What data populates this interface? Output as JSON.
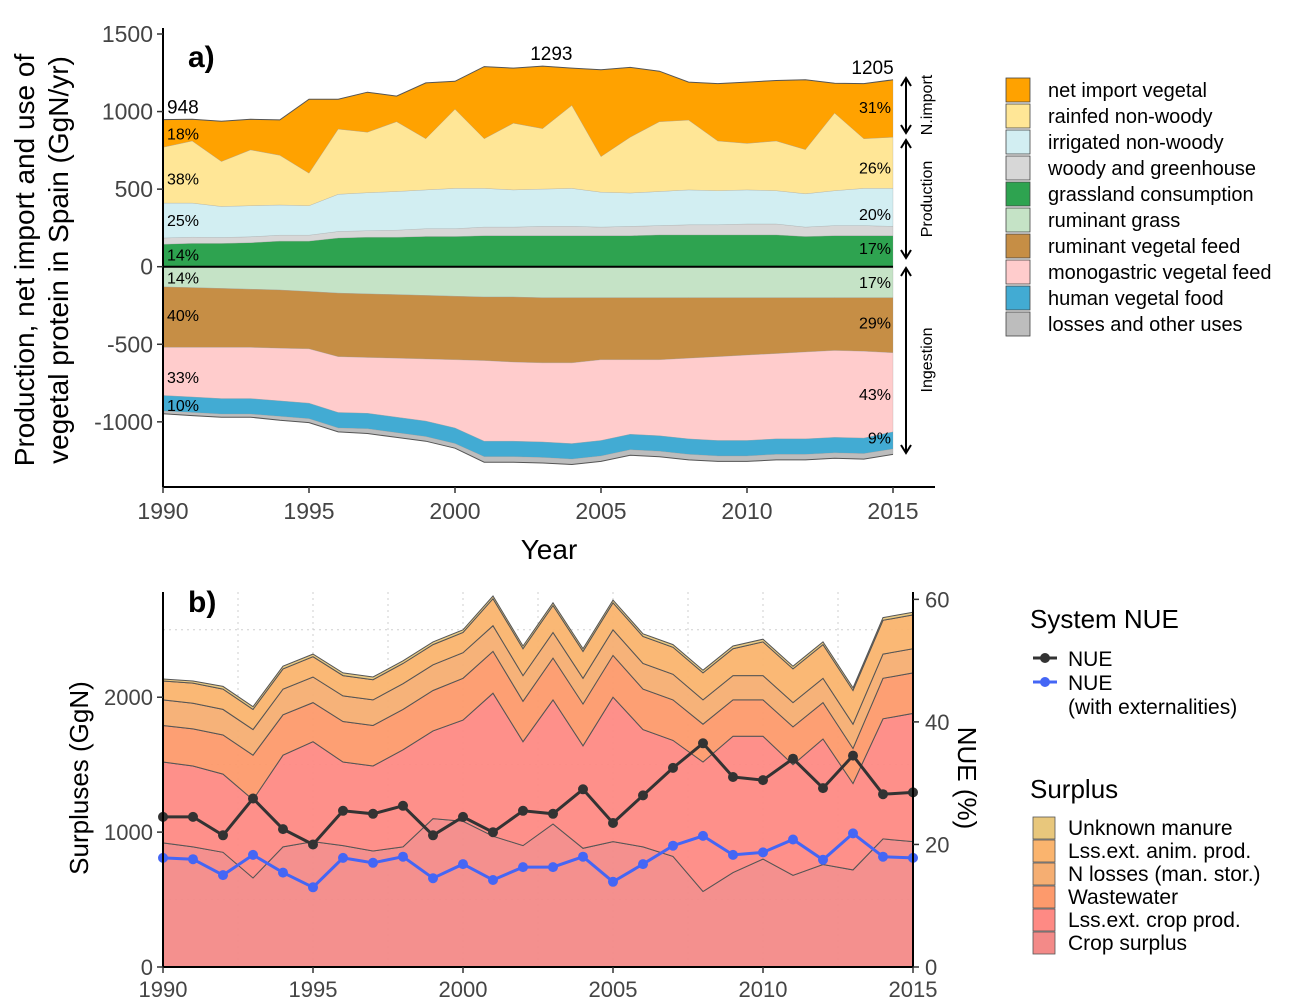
{
  "colors": {
    "net_import_vegetal": "#FFA200",
    "rainfed_non_woody": "#FFE696",
    "irrigated_non_woody": "#D2EEF2",
    "woody_and_greenhouse": "#D7D7D7",
    "grassland_consumption": "#2EA350",
    "ruminant_grass": "#C5E3C6",
    "ruminant_vegetal_feed": "#C68E45",
    "monogastric_vegetal_feed": "#FFCCCC",
    "human_vegetal_food": "#42ABD3",
    "losses_and_other_uses": "#BDBDBD",
    "unknown_manure": "#E8C77C",
    "lss_ext_anim_prod": "#FAB46E",
    "n_losses_man_stor": "#F5AE72",
    "wastewater": "#FD9A6C",
    "lss_ext_crop_prod": "#FE8A84",
    "crop_surplus": "#F38A88",
    "nue": "#333333",
    "nue_ext": "#4466F5"
  },
  "chart_data": [
    {
      "type": "area",
      "panel_label": "a)",
      "xlabel": "Year",
      "ylabel_line1": "Production, net import and use of",
      "ylabel_line2": "vegetal protein in Spain (GgN/yr)",
      "xlim": [
        1990,
        2015
      ],
      "ylim": [
        -1420,
        1500
      ],
      "y_ticks": [
        1500,
        1000,
        500,
        0,
        -500,
        -1000
      ],
      "y_tick_labels": [
        "1500",
        "1000",
        "500",
        "0",
        "-500",
        "-1000"
      ],
      "x_ticks": [
        1990,
        1995,
        2000,
        2005,
        2010,
        2015
      ],
      "x_tick_labels": [
        "1990",
        "1995",
        "2000",
        "2005",
        "2010",
        "2015"
      ],
      "x": [
        1990,
        1991,
        1992,
        1993,
        1994,
        1995,
        1996,
        1997,
        1998,
        1999,
        2000,
        2001,
        2002,
        2003,
        2004,
        2005,
        2006,
        2007,
        2008,
        2009,
        2010,
        2011,
        2012,
        2013,
        2014,
        2015
      ],
      "positive_series": [
        {
          "name": "grassland consumption",
          "color_key": "grassland_consumption",
          "values": [
            145,
            150,
            150,
            155,
            165,
            165,
            185,
            190,
            190,
            195,
            195,
            200,
            200,
            200,
            200,
            200,
            200,
            205,
            205,
            205,
            205,
            205,
            195,
            200,
            200,
            200
          ]
        },
        {
          "name": "woody and greenhouse",
          "color_key": "woody_and_greenhouse",
          "values": [
            40,
            40,
            38,
            38,
            38,
            38,
            42,
            42,
            45,
            50,
            50,
            55,
            55,
            60,
            60,
            55,
            60,
            60,
            65,
            65,
            70,
            70,
            60,
            65,
            65,
            60
          ]
        },
        {
          "name": "irrigated non-woody",
          "color_key": "irrigated_non_woody",
          "values": [
            225,
            220,
            200,
            200,
            195,
            190,
            240,
            245,
            250,
            250,
            260,
            250,
            240,
            240,
            245,
            225,
            215,
            220,
            225,
            220,
            220,
            215,
            215,
            225,
            240,
            245
          ]
        },
        {
          "name": "rainfed non-woody",
          "color_key": "rainfed_non_woody",
          "values": [
            360,
            400,
            290,
            360,
            320,
            210,
            420,
            390,
            450,
            330,
            510,
            320,
            430,
            390,
            535,
            230,
            360,
            450,
            450,
            320,
            300,
            320,
            285,
            500,
            320,
            330
          ]
        },
        {
          "name": "net import vegetal",
          "color_key": "net_import_vegetal",
          "values": [
            178,
            140,
            260,
            197,
            228,
            477,
            193,
            258,
            165,
            360,
            180,
            465,
            355,
            403,
            240,
            560,
            450,
            325,
            245,
            370,
            395,
            390,
            450,
            192,
            355,
            370
          ]
        }
      ],
      "negative_series": [
        {
          "name": "ruminant grass",
          "color_key": "ruminant_grass",
          "values": [
            -130,
            -135,
            -140,
            -145,
            -150,
            -160,
            -170,
            -175,
            -180,
            -185,
            -190,
            -195,
            -195,
            -200,
            -200,
            -200,
            -200,
            -200,
            -200,
            -200,
            -200,
            -200,
            -200,
            -200,
            -200,
            -200
          ]
        },
        {
          "name": "ruminant vegetal feed",
          "color_key": "ruminant_vegetal_feed",
          "values": [
            -390,
            -385,
            -380,
            -375,
            -375,
            -370,
            -410,
            -410,
            -410,
            -410,
            -410,
            -410,
            -420,
            -420,
            -420,
            -400,
            -400,
            -400,
            -390,
            -380,
            -370,
            -360,
            -350,
            -340,
            -345,
            -355
          ]
        },
        {
          "name": "monogastric vegetal feed",
          "color_key": "monogastric_vegetal_feed",
          "values": [
            -310,
            -320,
            -330,
            -330,
            -340,
            -350,
            -360,
            -360,
            -380,
            -400,
            -440,
            -520,
            -510,
            -510,
            -520,
            -520,
            -480,
            -490,
            -520,
            -540,
            -550,
            -550,
            -560,
            -560,
            -560,
            -510
          ]
        },
        {
          "name": "human vegetal food",
          "color_key": "human_vegetal_food",
          "values": [
            -100,
            -100,
            -100,
            -100,
            -100,
            -100,
            -100,
            -100,
            -100,
            -100,
            -100,
            -100,
            -100,
            -100,
            -100,
            -100,
            -100,
            -100,
            -100,
            -100,
            -100,
            -100,
            -100,
            -100,
            -100,
            -110
          ]
        },
        {
          "name": "losses and other uses",
          "color_key": "losses_and_other_uses",
          "values": [
            -18,
            -20,
            -20,
            -20,
            -25,
            -25,
            -25,
            -30,
            -30,
            -30,
            -30,
            -35,
            -35,
            -35,
            -35,
            -35,
            -35,
            -35,
            -35,
            -35,
            -35,
            -35,
            -35,
            -35,
            -35,
            -35
          ]
        }
      ],
      "totals": [
        {
          "x": 1990,
          "label": "948"
        },
        {
          "x": 2003.3,
          "label": "1293"
        },
        {
          "x": 2014.3,
          "label": "1205"
        }
      ],
      "pct_left": [
        "18%",
        "38%",
        "25%",
        "14%",
        "14%",
        "40%",
        "33%",
        "10%"
      ],
      "pct_right": [
        "31%",
        "26%",
        "20%",
        "17%",
        "17%",
        "29%",
        "43%",
        "9%"
      ],
      "side_labels": [
        "N.import",
        "Production",
        "Ingestion"
      ],
      "legend": [
        "net import vegetal",
        "rainfed non-woody",
        "irrigated non-woody",
        "woody and greenhouse",
        "grassland consumption",
        "ruminant grass",
        "ruminant vegetal feed",
        "monogastric vegetal feed",
        "human vegetal food",
        "losses and other uses"
      ]
    },
    {
      "type": "area",
      "panel_label": "b)",
      "ylabel": "Surpluses (GgN)",
      "y2label": "NUE (%)",
      "xlim": [
        1990,
        2015
      ],
      "ylim": [
        0,
        2780
      ],
      "y2lim": [
        0,
        61.2
      ],
      "y_ticks": [
        0,
        1000,
        2000
      ],
      "y_tick_labels": [
        "0",
        "1000",
        "2000"
      ],
      "y2_ticks": [
        0,
        20,
        40,
        60
      ],
      "y2_tick_labels": [
        "0",
        "20",
        "40",
        "60"
      ],
      "x_ticks": [
        1990,
        1995,
        2000,
        2005,
        2010,
        2015
      ],
      "x_tick_labels": [
        "1990",
        "1995",
        "2000",
        "2005",
        "2010",
        "2015"
      ],
      "x": [
        1990,
        1991,
        1992,
        1993,
        1994,
        1995,
        1996,
        1997,
        1998,
        1999,
        2000,
        2001,
        2002,
        2003,
        2004,
        2005,
        2006,
        2007,
        2008,
        2009,
        2010,
        2011,
        2012,
        2013,
        2014,
        2015
      ],
      "series": [
        {
          "name": "Crop surplus",
          "color_key": "crop_surplus",
          "values": [
            920,
            890,
            850,
            660,
            890,
            930,
            900,
            860,
            890,
            1100,
            1080,
            970,
            900,
            1060,
            880,
            930,
            890,
            820,
            560,
            700,
            800,
            680,
            760,
            720,
            950,
            930
          ]
        },
        {
          "name": "Lss.ext. crop prod.",
          "color_key": "lss_ext_crop_prod",
          "values": [
            600,
            600,
            580,
            580,
            680,
            740,
            620,
            630,
            720,
            650,
            750,
            1060,
            770,
            920,
            760,
            1070,
            870,
            860,
            960,
            1010,
            910,
            820,
            930,
            640,
            890,
            950
          ]
        },
        {
          "name": "Wastewater",
          "color_key": "wastewater",
          "values": [
            270,
            275,
            290,
            330,
            300,
            290,
            300,
            300,
            300,
            300,
            310,
            310,
            300,
            310,
            310,
            310,
            300,
            300,
            280,
            270,
            270,
            280,
            270,
            260,
            300,
            300
          ]
        },
        {
          "name": "N losses (man. stor.)",
          "color_key": "n_losses_man_stor",
          "values": [
            190,
            190,
            190,
            190,
            190,
            190,
            190,
            190,
            190,
            190,
            190,
            190,
            190,
            190,
            190,
            190,
            190,
            190,
            180,
            180,
            180,
            180,
            180,
            180,
            180,
            180
          ]
        },
        {
          "name": "Lss.ext. anim. prod.",
          "color_key": "lss_ext_anim_prod",
          "values": [
            140,
            150,
            150,
            150,
            150,
            150,
            150,
            150,
            150,
            150,
            150,
            200,
            200,
            200,
            200,
            200,
            200,
            200,
            200,
            200,
            250,
            250,
            250,
            250,
            250,
            250
          ]
        },
        {
          "name": "Unknown manure",
          "color_key": "unknown_manure",
          "values": [
            15,
            15,
            20,
            20,
            20,
            20,
            20,
            20,
            20,
            20,
            20,
            20,
            20,
            20,
            20,
            20,
            20,
            20,
            20,
            20,
            20,
            20,
            20,
            20,
            20,
            20
          ]
        }
      ],
      "nue": {
        "name": "NUE",
        "color_key": "nue",
        "values": [
          24.5,
          24.5,
          21.5,
          27.5,
          22.5,
          20,
          25.5,
          25,
          26.3,
          21.5,
          24.5,
          22,
          25.5,
          25,
          29,
          23.5,
          28,
          32.5,
          36.5,
          31,
          30.5,
          34,
          29.2,
          34.5,
          28.2,
          28.5
        ]
      },
      "nue_ext": {
        "name": "NUE (with externalities)",
        "color_key": "nue_ext",
        "values": [
          17.8,
          17.6,
          15,
          18.3,
          15.4,
          13,
          17.8,
          17,
          18,
          14.5,
          16.8,
          14.2,
          16.3,
          16.3,
          18,
          13.9,
          16.8,
          19.8,
          21.4,
          18.3,
          18.7,
          20.8,
          17.5,
          21.8,
          18,
          17.8
        ]
      },
      "legend_nue_title": "System NUE",
      "legend_nue_items": [
        {
          "color_key": "nue",
          "line1": "NUE",
          "line2": ""
        },
        {
          "color_key": "nue_ext",
          "line1": "NUE",
          "line2": "(with externalities)"
        }
      ],
      "legend_surplus_title": "Surplus",
      "legend_surplus": [
        "Unknown manure",
        "Lss.ext. anim. prod.",
        "N losses (man. stor.)",
        "Wastewater",
        "Lss.ext. crop prod.",
        "Crop surplus"
      ]
    }
  ]
}
